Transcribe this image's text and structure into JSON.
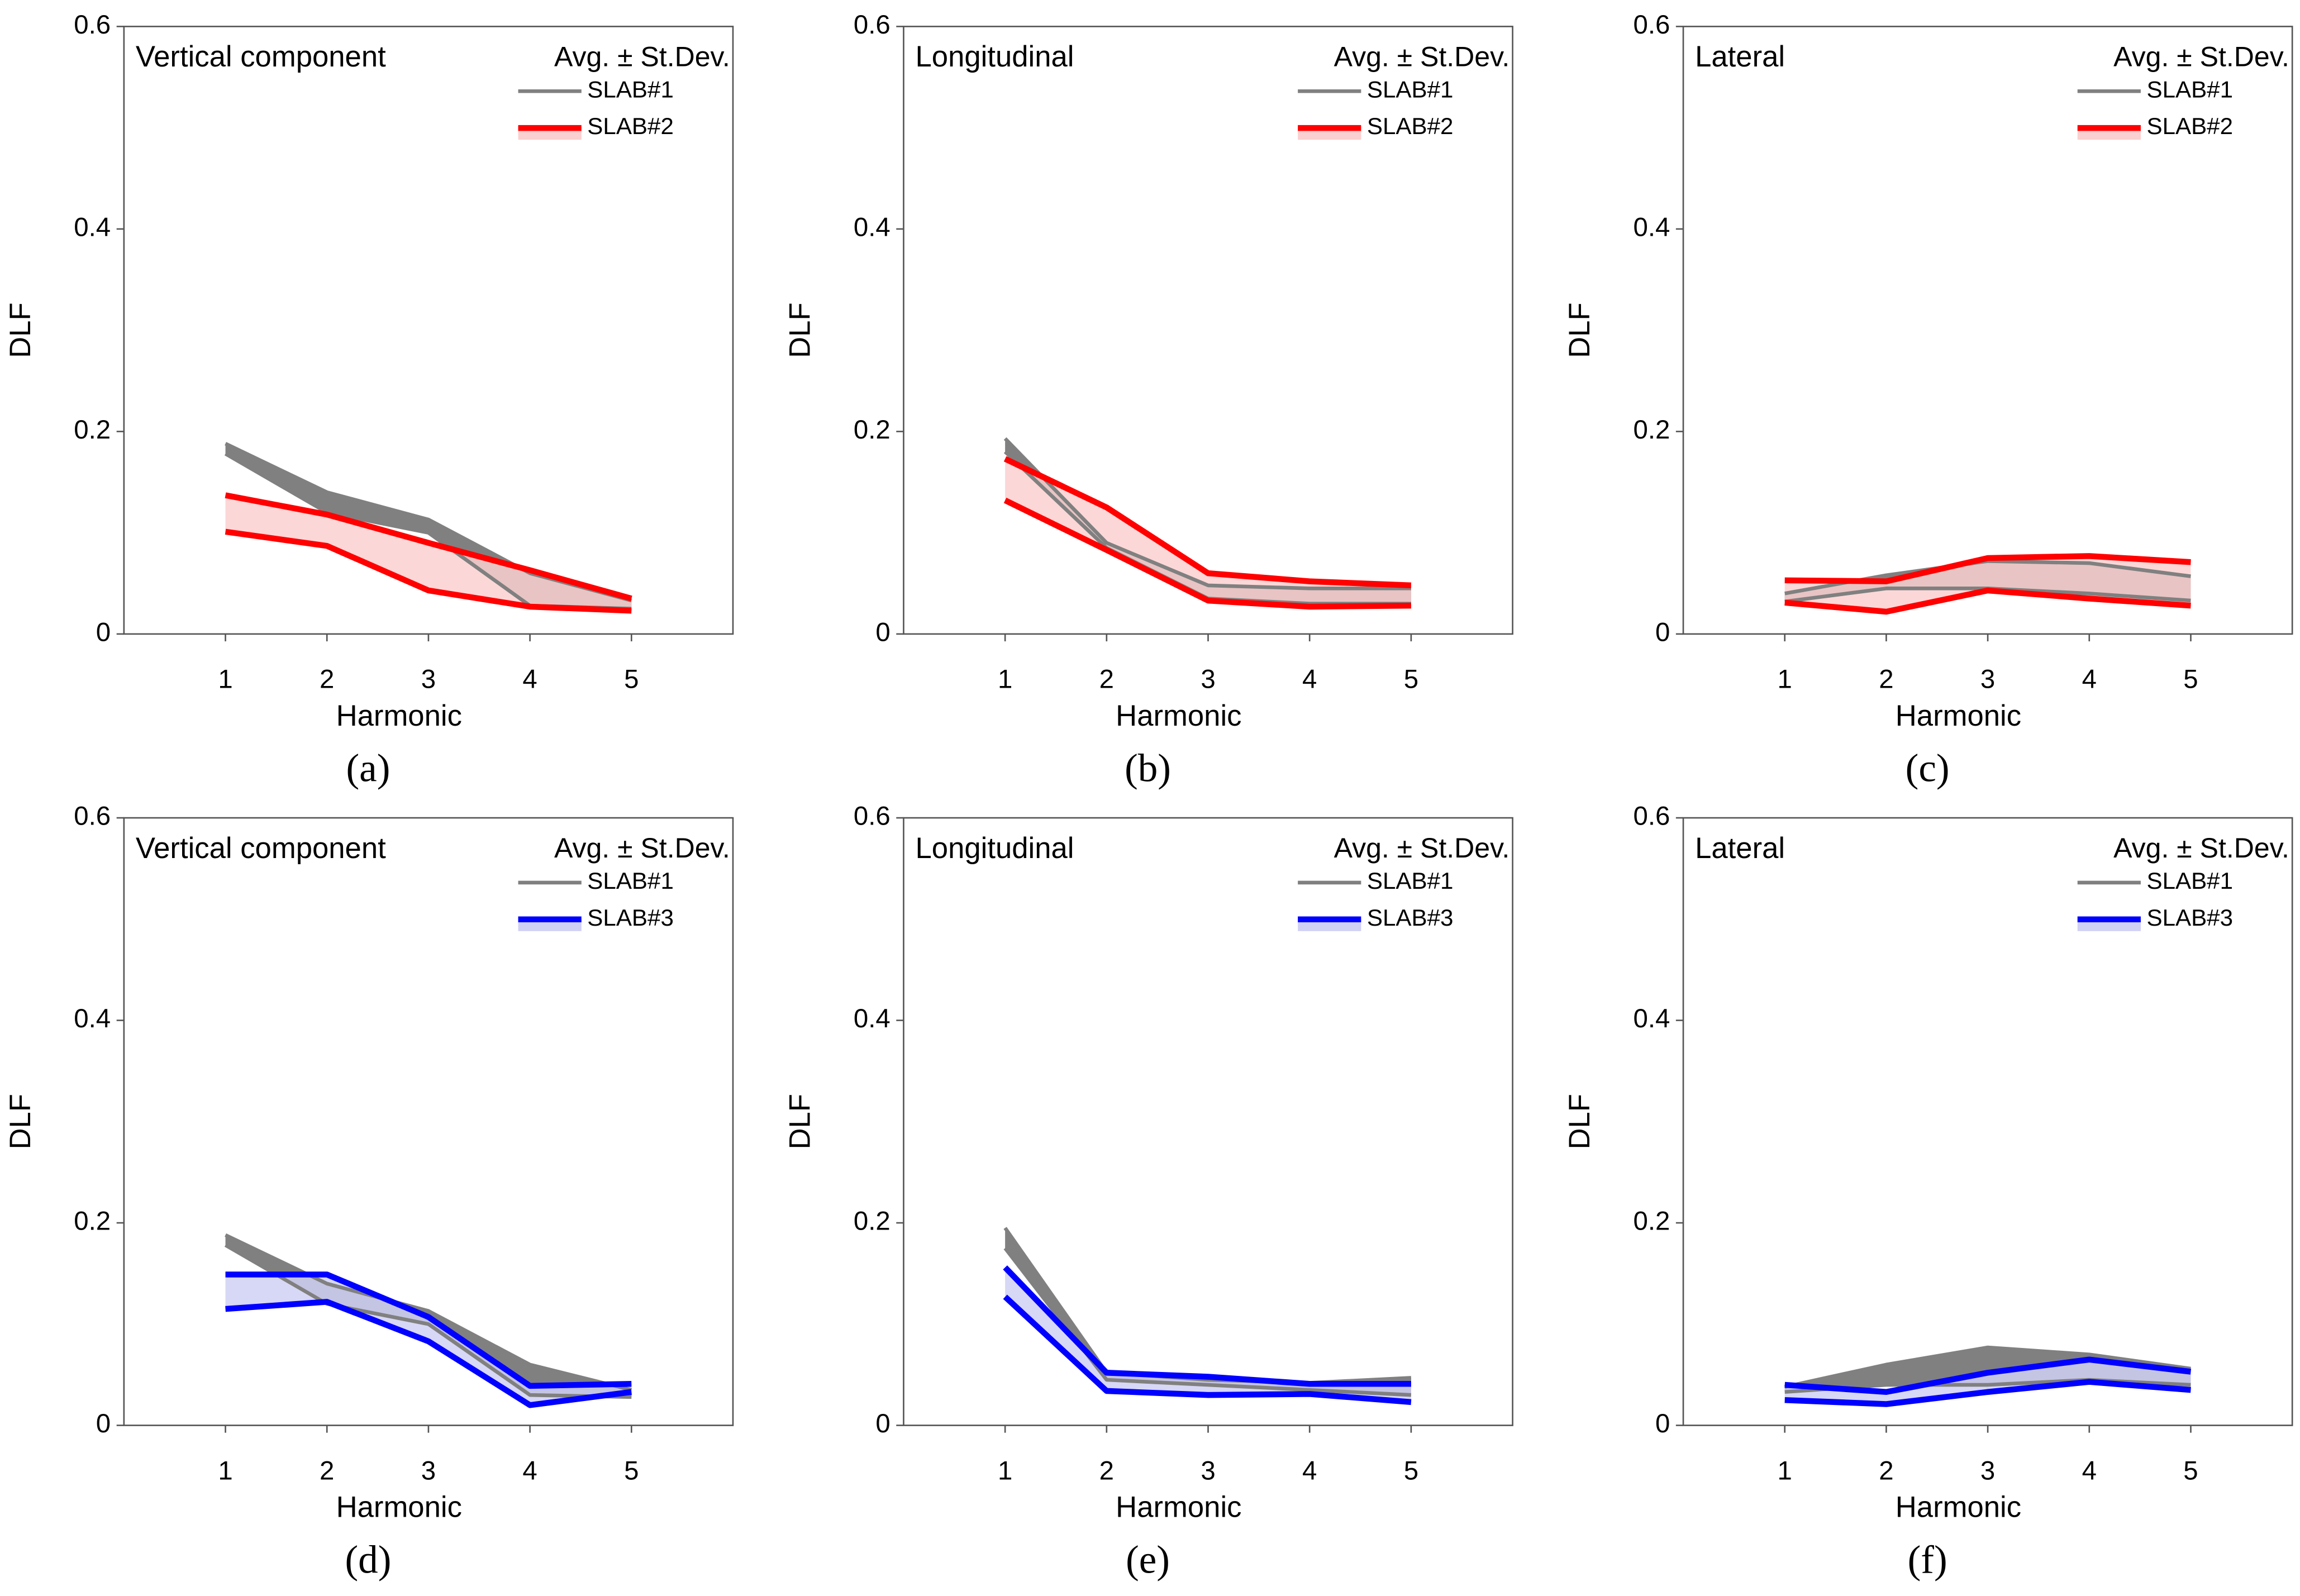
{
  "chart_data": [
    {
      "type": "band",
      "annotation": "Vertical component",
      "panel_label": "(a)",
      "xlabel": "Harmonic",
      "ylabel": "DLF",
      "legend_title": "Avg. ± St.Dev.",
      "xlim": [
        0,
        6
      ],
      "xticks": [
        1,
        2,
        3,
        4,
        5
      ],
      "ylim": [
        0,
        0.6
      ],
      "yticks": [
        0,
        0.2,
        0.4,
        0.6
      ],
      "series": [
        {
          "name": "SLAB#1",
          "color": "#808080",
          "band_color": "#808080",
          "x": [
            1,
            2,
            3,
            4,
            5
          ],
          "upper": [
            0.188,
            0.14,
            0.113,
            0.06,
            0.033
          ],
          "lower": [
            0.178,
            0.12,
            0.1,
            0.028,
            0.025
          ]
        },
        {
          "name": "SLAB#2",
          "color": "#ff0000",
          "band_color": "#fbd0d0",
          "x": [
            1,
            2,
            3,
            4,
            5
          ],
          "upper": [
            0.137,
            0.118,
            0.09,
            0.063,
            0.035
          ],
          "lower": [
            0.101,
            0.087,
            0.043,
            0.027,
            0.023
          ]
        }
      ]
    },
    {
      "type": "band",
      "annotation": "Longitudinal",
      "panel_label": "(b)",
      "xlabel": "Harmonic",
      "ylabel": "DLF",
      "legend_title": "Avg. ± St.Dev.",
      "xlim": [
        0,
        6
      ],
      "xticks": [
        1,
        2,
        3,
        4,
        5
      ],
      "ylim": [
        0,
        0.6
      ],
      "yticks": [
        0,
        0.2,
        0.4,
        0.6
      ],
      "series": [
        {
          "name": "SLAB#1",
          "color": "#808080",
          "band_color": "#808080",
          "x": [
            1,
            2,
            3,
            4,
            5
          ],
          "upper": [
            0.193,
            0.09,
            0.048,
            0.045,
            0.045
          ],
          "lower": [
            0.18,
            0.085,
            0.035,
            0.03,
            0.03
          ]
        },
        {
          "name": "SLAB#2",
          "color": "#ff0000",
          "band_color": "#fbd0d0",
          "x": [
            1,
            2,
            3,
            4,
            5
          ],
          "upper": [
            0.173,
            0.125,
            0.06,
            0.052,
            0.048
          ],
          "lower": [
            0.132,
            0.083,
            0.033,
            0.027,
            0.028
          ]
        }
      ]
    },
    {
      "type": "band",
      "annotation": "Lateral",
      "panel_label": "(c)",
      "xlabel": "Harmonic",
      "ylabel": "DLF",
      "legend_title": "Avg. ± St.Dev.",
      "xlim": [
        0,
        6
      ],
      "xticks": [
        1,
        2,
        3,
        4,
        5
      ],
      "ylim": [
        0,
        0.6
      ],
      "yticks": [
        0,
        0.2,
        0.4,
        0.6
      ],
      "series": [
        {
          "name": "SLAB#1",
          "color": "#808080",
          "band_color": "#808080",
          "x": [
            1,
            2,
            3,
            4,
            5
          ],
          "upper": [
            0.04,
            0.058,
            0.072,
            0.07,
            0.057
          ],
          "lower": [
            0.032,
            0.045,
            0.045,
            0.04,
            0.033
          ]
        },
        {
          "name": "SLAB#2",
          "color": "#ff0000",
          "band_color": "#fbd0d0",
          "x": [
            1,
            2,
            3,
            4,
            5
          ],
          "upper": [
            0.053,
            0.052,
            0.075,
            0.077,
            0.071
          ],
          "lower": [
            0.031,
            0.022,
            0.043,
            0.035,
            0.028
          ]
        }
      ]
    },
    {
      "type": "band",
      "annotation": "Vertical component",
      "panel_label": "(d)",
      "xlabel": "Harmonic",
      "ylabel": "DLF",
      "legend_title": "Avg. ± St.Dev.",
      "xlim": [
        0,
        6
      ],
      "xticks": [
        1,
        2,
        3,
        4,
        5
      ],
      "ylim": [
        0,
        0.6
      ],
      "yticks": [
        0,
        0.2,
        0.4,
        0.6
      ],
      "series": [
        {
          "name": "SLAB#1",
          "color": "#808080",
          "band_color": "#808080",
          "x": [
            1,
            2,
            3,
            4,
            5
          ],
          "upper": [
            0.188,
            0.14,
            0.113,
            0.06,
            0.035
          ],
          "lower": [
            0.178,
            0.12,
            0.1,
            0.03,
            0.028
          ]
        },
        {
          "name": "SLAB#3",
          "color": "#0000ff",
          "band_color": "#d0d0f4",
          "x": [
            1,
            2,
            3,
            4,
            5
          ],
          "upper": [
            0.149,
            0.149,
            0.107,
            0.039,
            0.041
          ],
          "lower": [
            0.115,
            0.122,
            0.083,
            0.02,
            0.033
          ]
        }
      ]
    },
    {
      "type": "band",
      "annotation": "Longitudinal",
      "panel_label": "(e)",
      "xlabel": "Harmonic",
      "ylabel": "DLF",
      "legend_title": "Avg. ± St.Dev.",
      "xlim": [
        0,
        6
      ],
      "xticks": [
        1,
        2,
        3,
        4,
        5
      ],
      "ylim": [
        0,
        0.6
      ],
      "yticks": [
        0,
        0.2,
        0.4,
        0.6
      ],
      "series": [
        {
          "name": "SLAB#1",
          "color": "#808080",
          "band_color": "#808080",
          "x": [
            1,
            2,
            3,
            4,
            5
          ],
          "upper": [
            0.195,
            0.052,
            0.045,
            0.042,
            0.047
          ],
          "lower": [
            0.175,
            0.045,
            0.04,
            0.035,
            0.03
          ]
        },
        {
          "name": "SLAB#3",
          "color": "#0000ff",
          "band_color": "#d0d0f4",
          "x": [
            1,
            2,
            3,
            4,
            5
          ],
          "upper": [
            0.156,
            0.052,
            0.048,
            0.041,
            0.041
          ],
          "lower": [
            0.127,
            0.034,
            0.03,
            0.031,
            0.023
          ]
        }
      ]
    },
    {
      "type": "band",
      "annotation": "Lateral",
      "panel_label": "(f)",
      "xlabel": "Harmonic",
      "ylabel": "DLF",
      "legend_title": "Avg. ± St.Dev.",
      "xlim": [
        0,
        6
      ],
      "xticks": [
        1,
        2,
        3,
        4,
        5
      ],
      "ylim": [
        0,
        0.6
      ],
      "yticks": [
        0,
        0.2,
        0.4,
        0.6
      ],
      "series": [
        {
          "name": "SLAB#1",
          "color": "#808080",
          "band_color": "#808080",
          "x": [
            1,
            2,
            3,
            4,
            5
          ],
          "upper": [
            0.038,
            0.06,
            0.077,
            0.07,
            0.056
          ],
          "lower": [
            0.033,
            0.04,
            0.04,
            0.045,
            0.04
          ]
        },
        {
          "name": "SLAB#3",
          "color": "#0000ff",
          "band_color": "#d0d0f4",
          "x": [
            1,
            2,
            3,
            4,
            5
          ],
          "upper": [
            0.04,
            0.033,
            0.052,
            0.065,
            0.053
          ],
          "lower": [
            0.025,
            0.021,
            0.033,
            0.043,
            0.035
          ]
        }
      ]
    }
  ]
}
